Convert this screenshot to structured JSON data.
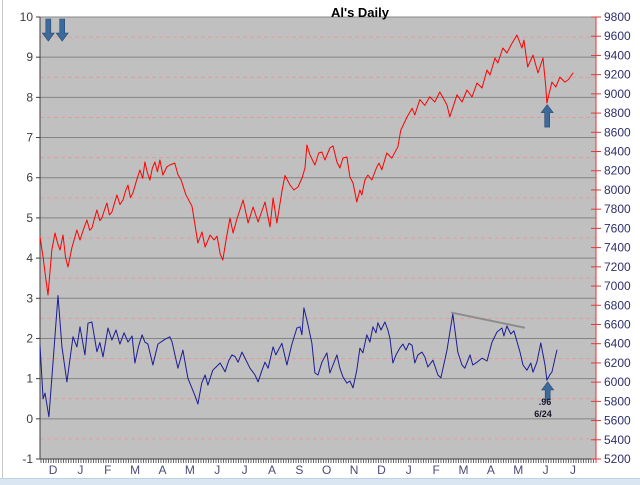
{
  "window": {
    "decor": {
      "bottom_strip_color": "#dbe6f3",
      "left_edge_color": "#c9c9c9"
    }
  },
  "chart_data": {
    "type": "line",
    "title": "Al's Daily",
    "x_axis": {
      "labels": [
        "D",
        "J",
        "F",
        "M",
        "A",
        "M",
        "J",
        "J",
        "A",
        "S",
        "O",
        "N",
        "D",
        "J",
        "F",
        "M",
        "A",
        "M",
        "J",
        "J"
      ],
      "m_first": 0.47,
      "m_last": 19.21
    },
    "left_axis": {
      "min": -1,
      "max": 10,
      "major": 1,
      "minor": 0.5,
      "labels": [
        10,
        9,
        8,
        7,
        6,
        5,
        4,
        3,
        2,
        1,
        0,
        -1
      ]
    },
    "right_axis": {
      "min": 5200,
      "max": 9800,
      "step": 200,
      "labels": [
        9800,
        9600,
        9400,
        9200,
        9000,
        8800,
        8600,
        8400,
        8200,
        8000,
        7800,
        7600,
        7400,
        7200,
        7000,
        6800,
        6600,
        6400,
        6200,
        6000,
        5800,
        5600,
        5400,
        5200
      ]
    },
    "series": [
      {
        "name": "price",
        "axis": "right",
        "color": "#ff0000",
        "width": 1,
        "points": [
          [
            0.0,
            7510
          ],
          [
            0.11,
            7300
          ],
          [
            0.2,
            7100
          ],
          [
            0.29,
            6907
          ],
          [
            0.43,
            7380
          ],
          [
            0.54,
            7552
          ],
          [
            0.63,
            7450
          ],
          [
            0.72,
            7375
          ],
          [
            0.83,
            7531
          ],
          [
            0.92,
            7300
          ],
          [
            1.01,
            7198
          ],
          [
            1.15,
            7400
          ],
          [
            1.33,
            7583
          ],
          [
            1.44,
            7479
          ],
          [
            1.58,
            7600
          ],
          [
            1.69,
            7687
          ],
          [
            1.79,
            7580
          ],
          [
            1.87,
            7604
          ],
          [
            1.96,
            7700
          ],
          [
            2.05,
            7791
          ],
          [
            2.16,
            7680
          ],
          [
            2.23,
            7708
          ],
          [
            2.32,
            7790
          ],
          [
            2.41,
            7864
          ],
          [
            2.5,
            7740
          ],
          [
            2.59,
            7771
          ],
          [
            2.68,
            7860
          ],
          [
            2.77,
            7947
          ],
          [
            2.88,
            7850
          ],
          [
            2.99,
            7895
          ],
          [
            3.08,
            7990
          ],
          [
            3.17,
            8051
          ],
          [
            3.26,
            7920
          ],
          [
            3.35,
            7968
          ],
          [
            3.47,
            8090
          ],
          [
            3.6,
            8208
          ],
          [
            3.7,
            8120
          ],
          [
            3.78,
            8291
          ],
          [
            3.87,
            8180
          ],
          [
            3.96,
            8103
          ],
          [
            4.05,
            8230
          ],
          [
            4.14,
            8291
          ],
          [
            4.23,
            8190
          ],
          [
            4.32,
            8312
          ],
          [
            4.43,
            8155
          ],
          [
            4.57,
            8240
          ],
          [
            4.68,
            8260
          ],
          [
            4.86,
            8280
          ],
          [
            4.97,
            8160
          ],
          [
            5.08,
            8110
          ],
          [
            5.26,
            7950
          ],
          [
            5.48,
            7830
          ],
          [
            5.69,
            7448
          ],
          [
            5.84,
            7562
          ],
          [
            5.95,
            7406
          ],
          [
            6.13,
            7530
          ],
          [
            6.27,
            7480
          ],
          [
            6.38,
            7520
          ],
          [
            6.5,
            7330
          ],
          [
            6.59,
            7271
          ],
          [
            6.72,
            7500
          ],
          [
            6.85,
            7708
          ],
          [
            6.96,
            7552
          ],
          [
            7.1,
            7700
          ],
          [
            7.32,
            7895
          ],
          [
            7.5,
            7656
          ],
          [
            7.68,
            7823
          ],
          [
            7.86,
            7667
          ],
          [
            8.11,
            7875
          ],
          [
            8.29,
            7614
          ],
          [
            8.4,
            7916
          ],
          [
            8.54,
            7656
          ],
          [
            8.72,
            7985
          ],
          [
            8.83,
            8150
          ],
          [
            9.01,
            8052
          ],
          [
            9.15,
            8000
          ],
          [
            9.3,
            8031
          ],
          [
            9.45,
            8130
          ],
          [
            9.55,
            8229
          ],
          [
            9.62,
            8468
          ],
          [
            9.73,
            8364
          ],
          [
            9.91,
            8260
          ],
          [
            10.05,
            8385
          ],
          [
            10.16,
            8395
          ],
          [
            10.27,
            8312
          ],
          [
            10.45,
            8437
          ],
          [
            10.56,
            8458
          ],
          [
            10.7,
            8291
          ],
          [
            10.81,
            8229
          ],
          [
            10.92,
            8333
          ],
          [
            11.06,
            8343
          ],
          [
            11.17,
            8135
          ],
          [
            11.28,
            8072
          ],
          [
            11.42,
            7875
          ],
          [
            11.53,
            8000
          ],
          [
            11.6,
            7948
          ],
          [
            11.71,
            8104
          ],
          [
            11.82,
            8156
          ],
          [
            11.96,
            8104
          ],
          [
            12.14,
            8239
          ],
          [
            12.22,
            8280
          ],
          [
            12.32,
            8210
          ],
          [
            12.5,
            8385
          ],
          [
            12.68,
            8330
          ],
          [
            12.9,
            8450
          ],
          [
            13.0,
            8620
          ],
          [
            13.23,
            8760
          ],
          [
            13.41,
            8850
          ],
          [
            13.51,
            8780
          ],
          [
            13.69,
            8940
          ],
          [
            13.87,
            8880
          ],
          [
            14.05,
            8970
          ],
          [
            14.23,
            8915
          ],
          [
            14.41,
            9020
          ],
          [
            14.67,
            8884
          ],
          [
            14.77,
            8760
          ],
          [
            15.03,
            8990
          ],
          [
            15.21,
            8915
          ],
          [
            15.39,
            9040
          ],
          [
            15.57,
            8967
          ],
          [
            15.75,
            9113
          ],
          [
            15.93,
            9061
          ],
          [
            16.11,
            9248
          ],
          [
            16.22,
            9196
          ],
          [
            16.4,
            9373
          ],
          [
            16.5,
            9321
          ],
          [
            16.68,
            9477
          ],
          [
            16.83,
            9425
          ],
          [
            17.0,
            9520
          ],
          [
            17.19,
            9613
          ],
          [
            17.37,
            9477
          ],
          [
            17.44,
            9560
          ],
          [
            17.58,
            9280
          ],
          [
            17.77,
            9404
          ],
          [
            17.95,
            9217
          ],
          [
            18.13,
            9373
          ],
          [
            18.23,
            9071
          ],
          [
            18.27,
            8905
          ],
          [
            18.45,
            9123
          ],
          [
            18.59,
            9071
          ],
          [
            18.74,
            9175
          ],
          [
            18.92,
            9123
          ],
          [
            19.05,
            9150
          ],
          [
            19.21,
            9217
          ]
        ]
      },
      {
        "name": "oscillator",
        "axis": "left",
        "color": "#1c1c94",
        "width": 1,
        "points": [
          [
            0.0,
            1.83
          ],
          [
            0.11,
            0.5
          ],
          [
            0.18,
            0.64
          ],
          [
            0.32,
            0.05
          ],
          [
            0.47,
            1.4
          ],
          [
            0.65,
            3.07
          ],
          [
            0.79,
            1.8
          ],
          [
            0.97,
            0.92
          ],
          [
            1.19,
            2.04
          ],
          [
            1.33,
            1.79
          ],
          [
            1.44,
            2.29
          ],
          [
            1.62,
            1.59
          ],
          [
            1.73,
            2.38
          ],
          [
            1.87,
            2.41
          ],
          [
            2.05,
            1.67
          ],
          [
            2.16,
            1.9
          ],
          [
            2.27,
            1.54
          ],
          [
            2.45,
            2.26
          ],
          [
            2.59,
            1.96
          ],
          [
            2.74,
            2.21
          ],
          [
            2.88,
            1.86
          ],
          [
            3.03,
            2.14
          ],
          [
            3.17,
            1.91
          ],
          [
            3.32,
            2.06
          ],
          [
            3.42,
            1.39
          ],
          [
            3.55,
            1.8
          ],
          [
            3.68,
            2.09
          ],
          [
            3.78,
            1.91
          ],
          [
            3.89,
            1.86
          ],
          [
            4.07,
            1.34
          ],
          [
            4.25,
            1.86
          ],
          [
            4.5,
            1.98
          ],
          [
            4.68,
            2.04
          ],
          [
            4.76,
            1.91
          ],
          [
            4.97,
            1.26
          ],
          [
            5.15,
            1.71
          ],
          [
            5.33,
            1.01
          ],
          [
            5.59,
            0.57
          ],
          [
            5.69,
            0.37
          ],
          [
            5.83,
            0.9
          ],
          [
            5.95,
            1.09
          ],
          [
            6.05,
            0.84
          ],
          [
            6.23,
            1.21
          ],
          [
            6.36,
            1.3
          ],
          [
            6.49,
            1.39
          ],
          [
            6.67,
            1.17
          ],
          [
            6.8,
            1.45
          ],
          [
            6.92,
            1.59
          ],
          [
            7.03,
            1.55
          ],
          [
            7.14,
            1.41
          ],
          [
            7.28,
            1.66
          ],
          [
            7.39,
            1.51
          ],
          [
            7.57,
            1.26
          ],
          [
            7.75,
            1.09
          ],
          [
            7.86,
            0.92
          ],
          [
            8.0,
            1.21
          ],
          [
            8.11,
            1.41
          ],
          [
            8.22,
            1.26
          ],
          [
            8.4,
            1.79
          ],
          [
            8.5,
            1.59
          ],
          [
            8.72,
            1.88
          ],
          [
            8.9,
            1.34
          ],
          [
            9.08,
            1.86
          ],
          [
            9.26,
            2.26
          ],
          [
            9.37,
            2.29
          ],
          [
            9.44,
            2.09
          ],
          [
            9.51,
            2.76
          ],
          [
            9.66,
            2.34
          ],
          [
            9.8,
            1.88
          ],
          [
            9.91,
            1.14
          ],
          [
            10.02,
            1.09
          ],
          [
            10.16,
            1.41
          ],
          [
            10.34,
            1.64
          ],
          [
            10.45,
            1.14
          ],
          [
            10.59,
            1.39
          ],
          [
            10.7,
            1.59
          ],
          [
            10.81,
            1.26
          ],
          [
            10.92,
            1.04
          ],
          [
            11.06,
            0.89
          ],
          [
            11.17,
            0.94
          ],
          [
            11.28,
            0.77
          ],
          [
            11.42,
            1.21
          ],
          [
            11.53,
            1.76
          ],
          [
            11.64,
            1.64
          ],
          [
            11.78,
            2.09
          ],
          [
            11.89,
            1.91
          ],
          [
            12.0,
            2.29
          ],
          [
            12.11,
            2.14
          ],
          [
            12.18,
            2.39
          ],
          [
            12.29,
            2.21
          ],
          [
            12.43,
            2.41
          ],
          [
            12.54,
            2.21
          ],
          [
            12.61,
            2.01
          ],
          [
            12.72,
            1.39
          ],
          [
            12.83,
            1.59
          ],
          [
            12.97,
            1.76
          ],
          [
            13.08,
            1.86
          ],
          [
            13.19,
            1.71
          ],
          [
            13.3,
            1.88
          ],
          [
            13.41,
            1.83
          ],
          [
            13.51,
            1.39
          ],
          [
            13.62,
            1.59
          ],
          [
            13.77,
            1.66
          ],
          [
            13.87,
            1.54
          ],
          [
            13.98,
            1.29
          ],
          [
            14.16,
            1.46
          ],
          [
            14.34,
            1.09
          ],
          [
            14.45,
            1.02
          ],
          [
            14.67,
            1.71
          ],
          [
            14.88,
            2.61
          ],
          [
            15.06,
            1.66
          ],
          [
            15.21,
            1.34
          ],
          [
            15.31,
            1.26
          ],
          [
            15.5,
            1.59
          ],
          [
            15.6,
            1.34
          ],
          [
            15.75,
            1.41
          ],
          [
            15.93,
            1.51
          ],
          [
            16.11,
            1.44
          ],
          [
            16.29,
            1.91
          ],
          [
            16.47,
            2.16
          ],
          [
            16.65,
            2.26
          ],
          [
            16.72,
            2.06
          ],
          [
            16.83,
            2.31
          ],
          [
            16.97,
            2.11
          ],
          [
            17.08,
            2.19
          ],
          [
            17.3,
            1.66
          ],
          [
            17.41,
            1.34
          ],
          [
            17.55,
            1.21
          ],
          [
            17.69,
            1.39
          ],
          [
            17.77,
            1.16
          ],
          [
            17.91,
            1.41
          ],
          [
            18.05,
            1.89
          ],
          [
            18.2,
            1.34
          ],
          [
            18.27,
            0.96
          ],
          [
            18.38,
            1.1
          ],
          [
            18.45,
            1.16
          ],
          [
            18.63,
            1.71
          ]
        ]
      },
      {
        "name": "trendline",
        "axis": "left",
        "color": "#8c8c8c",
        "width": 2,
        "points": [
          [
            14.85,
            2.64
          ],
          [
            17.45,
            2.27
          ]
        ]
      }
    ],
    "annotations": [
      {
        "text": ".96"
      },
      {
        "text": "6/24"
      }
    ],
    "arrows": [
      {
        "dir": "down",
        "m": 0.3,
        "tail": 9.95,
        "tip": 9.4
      },
      {
        "dir": "down",
        "m": 0.8,
        "tail": 9.95,
        "tip": 9.4
      },
      {
        "dir": "up",
        "m": 18.28,
        "tail": 7.26,
        "tip": 7.82
      },
      {
        "dir": "up",
        "m": 18.3,
        "tail": 0.47,
        "tip": 0.92
      }
    ],
    "style": {
      "plot_bg": "#c0c0c0",
      "plot_border": "#888888",
      "axis_line": "#404040",
      "major_grid": "#848484",
      "minor_grid": "#e09c9c",
      "right_axis_color": "#e03a3a",
      "left_label_color": "#3d3d3d",
      "right_label_color": "#2f2f6e",
      "month_label_color": "#4c4c78",
      "tick_strip_color": "#666666",
      "arrow_fill": "#3c6a9c",
      "arrow_stroke": "#2a4a70"
    }
  }
}
